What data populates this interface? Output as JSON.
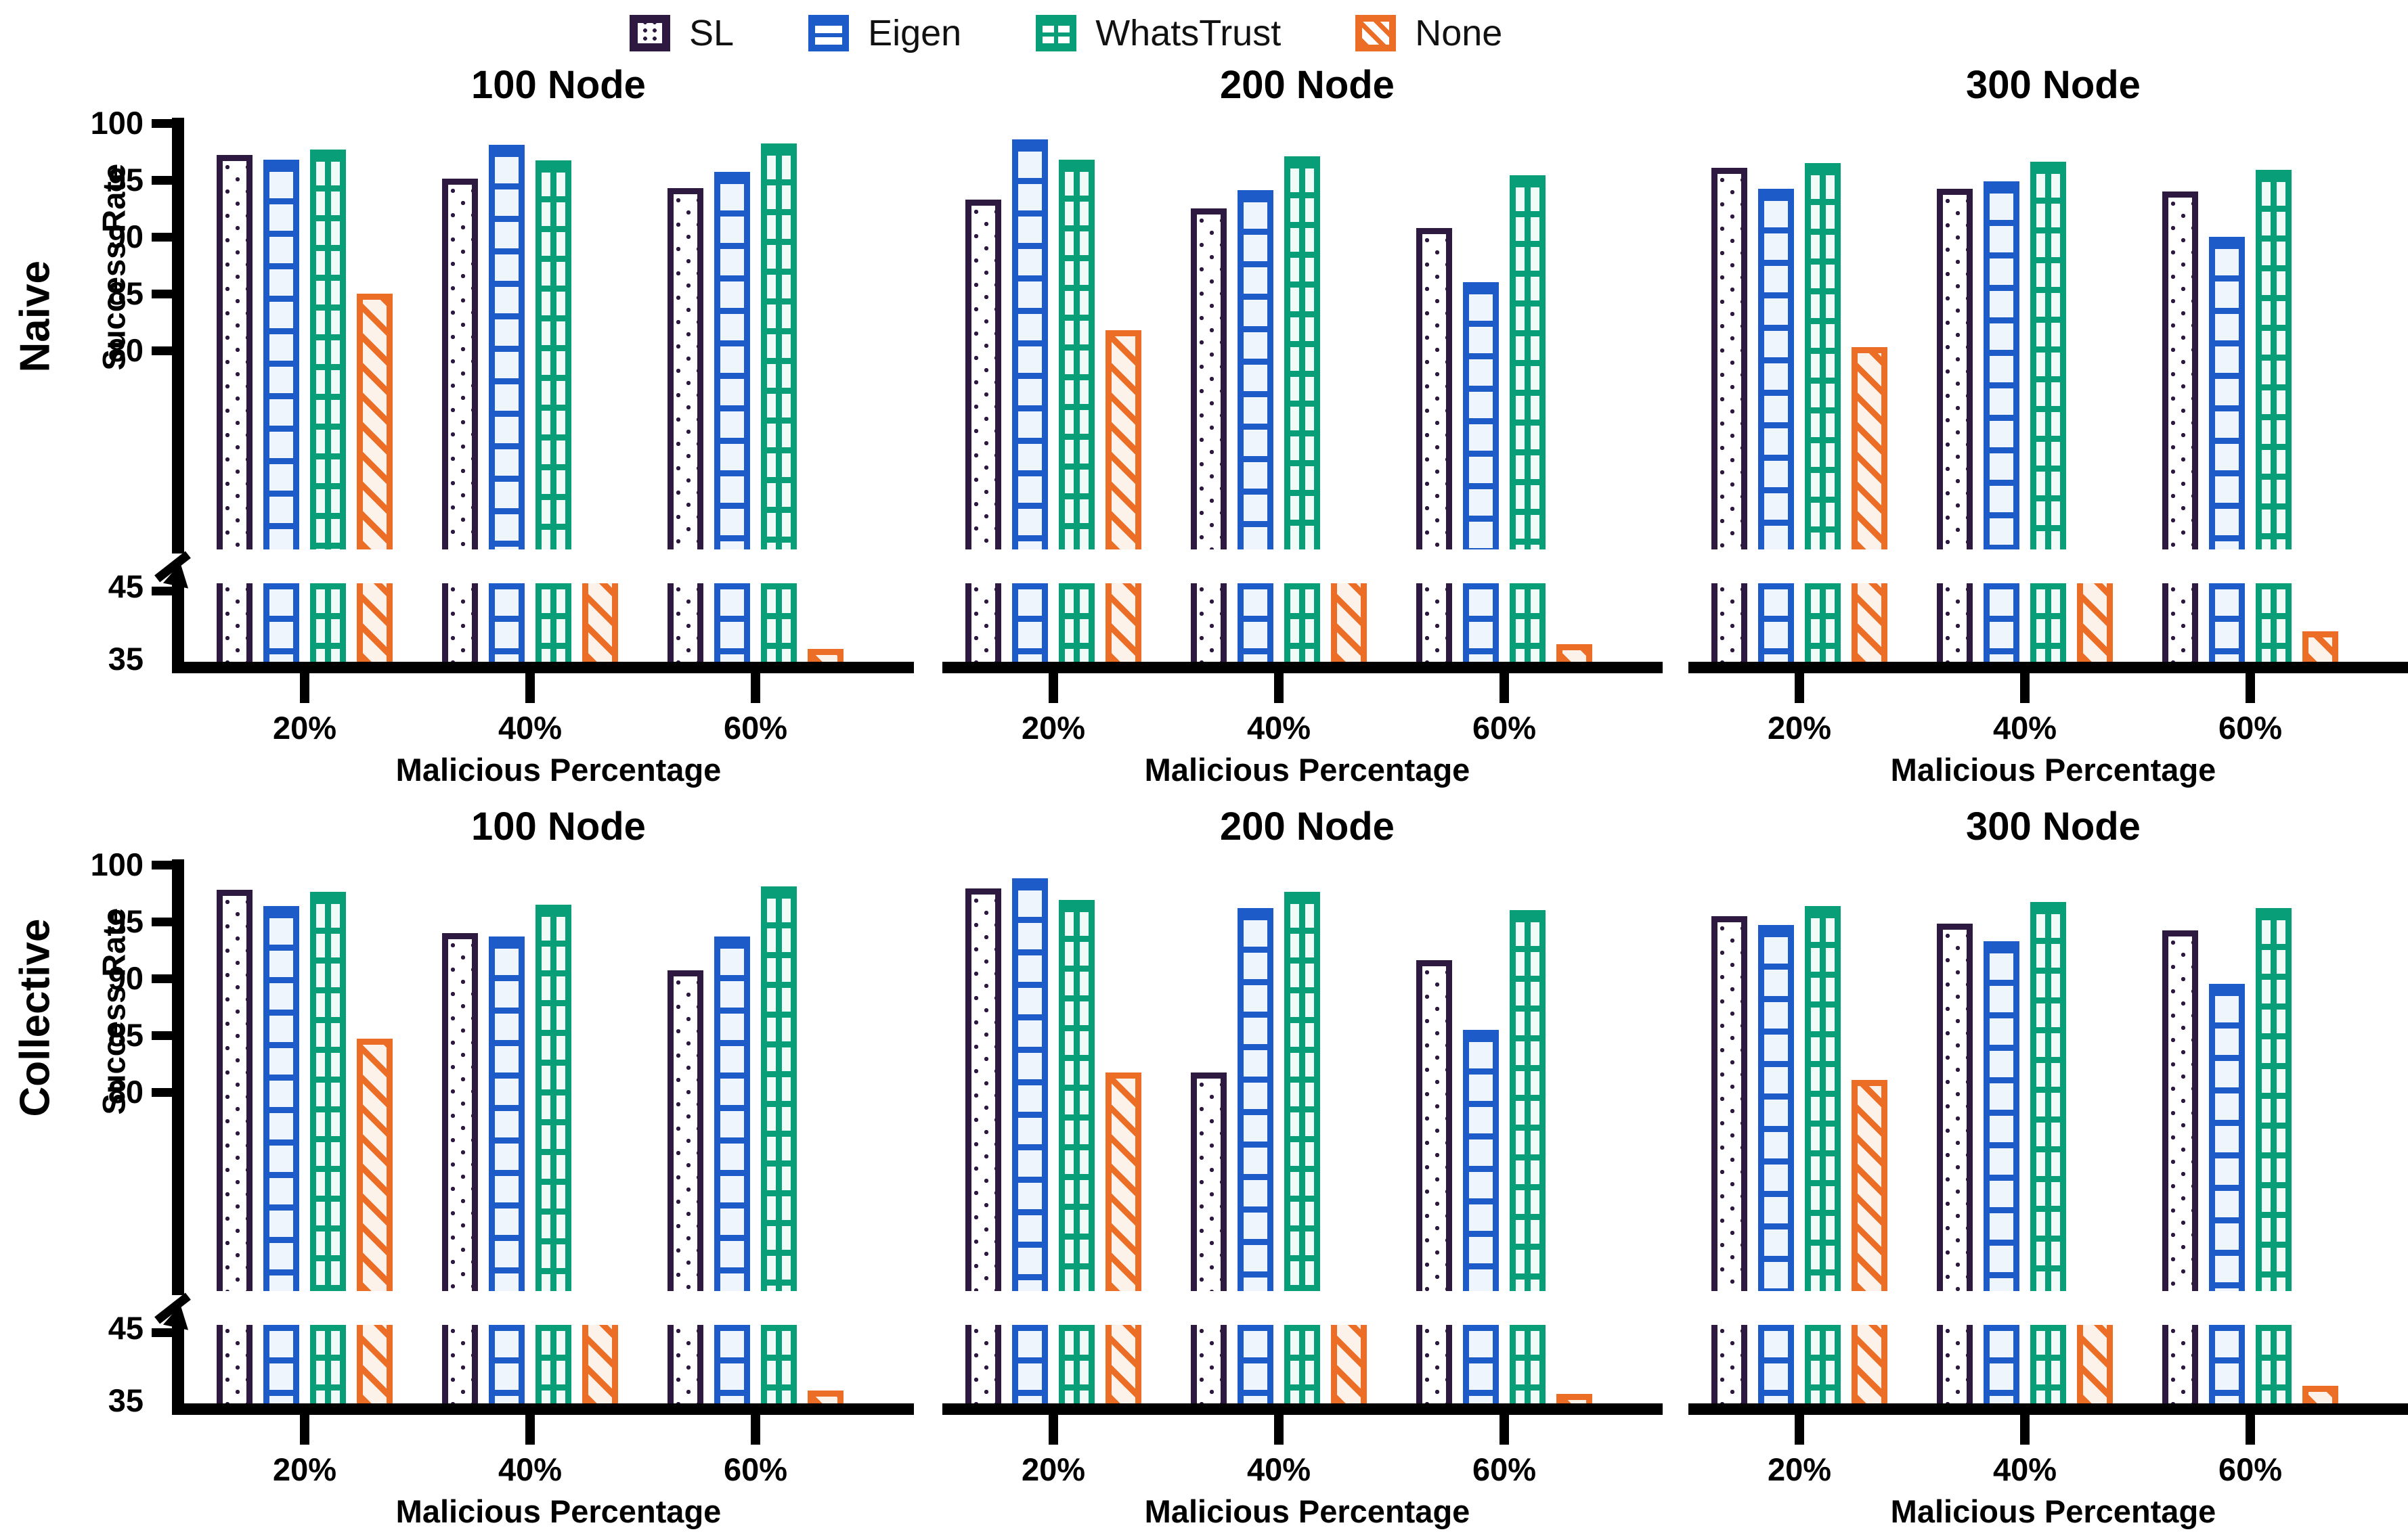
{
  "legend": [
    {
      "label": "SL",
      "series": "sl"
    },
    {
      "label": "Eigen",
      "series": "eigen"
    },
    {
      "label": "WhatsTrust",
      "series": "wt"
    },
    {
      "label": "None",
      "series": "none"
    }
  ],
  "colors": {
    "sl": "#2e1a40",
    "eigen": "#1c5bc8",
    "whatstrust": "#089e77",
    "none": "#ec6d25",
    "axis": "#000000",
    "background": "#ffffff"
  },
  "rows": [
    {
      "label": "Naive"
    },
    {
      "label": "Collective"
    }
  ],
  "ylabel": "Success Rate",
  "xlabel": "Malicious Percentage",
  "x_ticks": [
    "20%",
    "40%",
    "60%"
  ],
  "y_ticks_top": [
    100,
    95,
    90,
    85,
    80
  ],
  "y_ticks_bottom": [
    45,
    35
  ],
  "axis_break": {
    "top_min": 62.5,
    "top_max": 100,
    "bottom_min": 35,
    "bottom_max": 46
  },
  "chart_data": [
    {
      "type": "bar",
      "row": "Naive",
      "title": "100 Node",
      "xlabel": "Malicious Percentage",
      "ylabel": "Success Rate",
      "categories": [
        "20%",
        "40%",
        "60%"
      ],
      "series": [
        {
          "name": "SL",
          "values": [
            97.2,
            95.1,
            94.3
          ]
        },
        {
          "name": "Eigen",
          "values": [
            96.8,
            98.1,
            95.7
          ]
        },
        {
          "name": "WhatsTrust",
          "values": [
            97.7,
            96.7,
            98.2
          ]
        },
        {
          "name": "None",
          "values": [
            85.0,
            45.0,
            36.8
          ]
        }
      ]
    },
    {
      "type": "bar",
      "row": "Naive",
      "title": "200 Node",
      "xlabel": "Malicious Percentage",
      "ylabel": "Success Rate",
      "categories": [
        "20%",
        "40%",
        "60%"
      ],
      "series": [
        {
          "name": "SL",
          "values": [
            93.3,
            92.5,
            90.8
          ]
        },
        {
          "name": "Eigen",
          "values": [
            98.6,
            94.1,
            86.0
          ]
        },
        {
          "name": "WhatsTrust",
          "values": [
            96.8,
            97.1,
            95.4
          ]
        },
        {
          "name": "None",
          "values": [
            81.8,
            45.0,
            37.5
          ]
        }
      ]
    },
    {
      "type": "bar",
      "row": "Naive",
      "title": "300 Node",
      "xlabel": "Malicious Percentage",
      "ylabel": "Success Rate",
      "categories": [
        "20%",
        "40%",
        "60%"
      ],
      "series": [
        {
          "name": "SL",
          "values": [
            96.1,
            94.2,
            94.0
          ]
        },
        {
          "name": "Eigen",
          "values": [
            94.2,
            94.9,
            90.0
          ]
        },
        {
          "name": "WhatsTrust",
          "values": [
            96.5,
            96.6,
            95.9
          ]
        },
        {
          "name": "None",
          "values": [
            80.3,
            45.0,
            39.3
          ]
        }
      ]
    },
    {
      "type": "bar",
      "row": "Collective",
      "title": "100 Node",
      "xlabel": "Malicious Percentage",
      "ylabel": "Success Rate",
      "categories": [
        "20%",
        "40%",
        "60%"
      ],
      "series": [
        {
          "name": "SL",
          "values": [
            97.8,
            94.0,
            90.7
          ]
        },
        {
          "name": "Eigen",
          "values": [
            96.4,
            93.7,
            93.7
          ]
        },
        {
          "name": "WhatsTrust",
          "values": [
            97.6,
            96.5,
            98.1
          ]
        },
        {
          "name": "None",
          "values": [
            84.7,
            45.0,
            36.8
          ]
        }
      ]
    },
    {
      "type": "bar",
      "row": "Collective",
      "title": "200 Node",
      "xlabel": "Malicious Percentage",
      "ylabel": "Success Rate",
      "categories": [
        "20%",
        "40%",
        "60%"
      ],
      "series": [
        {
          "name": "SL",
          "values": [
            97.9,
            81.7,
            91.6
          ]
        },
        {
          "name": "Eigen",
          "values": [
            98.8,
            96.2,
            85.5
          ]
        },
        {
          "name": "WhatsTrust",
          "values": [
            96.9,
            97.6,
            96.0
          ]
        },
        {
          "name": "None",
          "values": [
            81.7,
            45.0,
            36.3
          ]
        }
      ]
    },
    {
      "type": "bar",
      "row": "Collective",
      "title": "300 Node",
      "xlabel": "Malicious Percentage",
      "ylabel": "Success Rate",
      "categories": [
        "20%",
        "40%",
        "60%"
      ],
      "series": [
        {
          "name": "SL",
          "values": [
            95.5,
            94.8,
            94.2
          ]
        },
        {
          "name": "Eigen",
          "values": [
            94.7,
            93.3,
            89.5
          ]
        },
        {
          "name": "WhatsTrust",
          "values": [
            96.4,
            96.7,
            96.2
          ]
        },
        {
          "name": "None",
          "values": [
            81.1,
            45.0,
            37.5
          ]
        }
      ]
    }
  ]
}
